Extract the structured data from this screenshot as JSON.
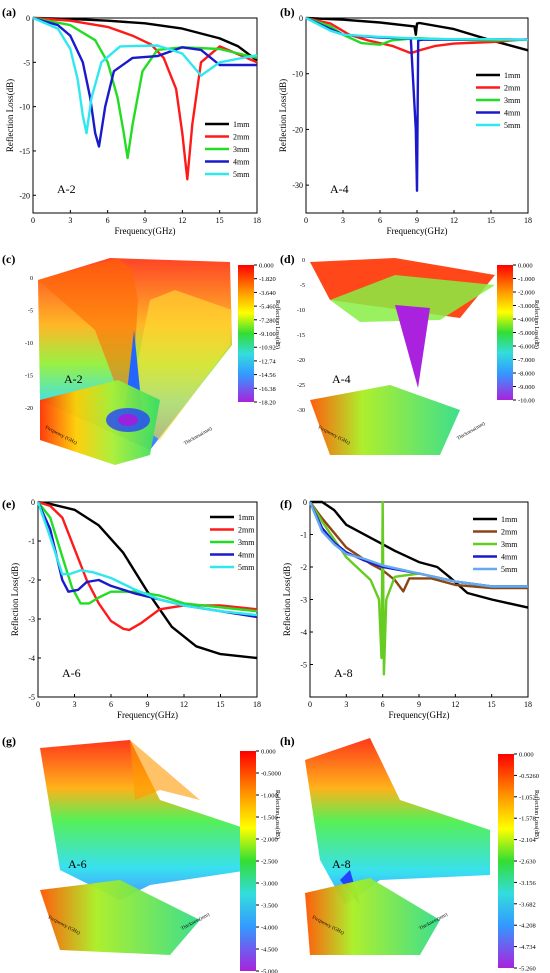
{
  "colors": {
    "1mm": "#000000",
    "2mm": "#ff1a1a",
    "3mm": "#22dd22",
    "4mm": "#1a1acc",
    "5mm": "#2ee8ee",
    "2mm_b": "#8b4513",
    "3mm_b": "#66cc22",
    "4mm_b": "#1a1acc",
    "5mm_b": "#66aaee"
  },
  "panels": {
    "a": {
      "label": "(a)",
      "sample": "A-2"
    },
    "b": {
      "label": "(b)",
      "sample": "A-4"
    },
    "c": {
      "label": "(c)",
      "sample": "A-2"
    },
    "d": {
      "label": "(d)",
      "sample": "A-4"
    },
    "e": {
      "label": "(e)",
      "sample": "A-6"
    },
    "f": {
      "label": "(f)",
      "sample": "A-8"
    },
    "g": {
      "label": "(g)",
      "sample": "A-6"
    },
    "h": {
      "label": "(h)",
      "sample": "A-8"
    }
  },
  "surface_axis_labels": {
    "z": "Reflection Loss(dB)",
    "freq": "Frequency (GHz)",
    "thick": "Thickness(mm)"
  },
  "chart_data": [
    {
      "panel": "a",
      "type": "line",
      "xlabel": "Frequency(GHz)",
      "ylabel": "Reflection Loss(dB)",
      "xlim": [
        0,
        18
      ],
      "ylim": [
        -22,
        0
      ],
      "xticks": [
        0,
        3,
        6,
        9,
        12,
        15,
        18
      ],
      "yticks": [
        0,
        -5,
        -10,
        -15,
        -20
      ],
      "legend": "center-right",
      "series": [
        {
          "name": "1mm",
          "x": [
            0,
            3,
            6,
            9,
            12,
            15,
            16.5,
            18
          ],
          "y": [
            0,
            -0.1,
            -0.3,
            -0.6,
            -1.2,
            -2.3,
            -3.2,
            -4.8
          ]
        },
        {
          "name": "2mm",
          "x": [
            0,
            3,
            6,
            8,
            9.5,
            10.5,
            11.5,
            12,
            12.4,
            12.8,
            13.5,
            15,
            18
          ],
          "y": [
            0,
            -0.3,
            -1,
            -2,
            -3,
            -4.5,
            -8,
            -13,
            -18.2,
            -12,
            -5,
            -3.2,
            -5
          ]
        },
        {
          "name": "3mm",
          "x": [
            0,
            3,
            5,
            6,
            6.8,
            7.3,
            7.6,
            8,
            8.8,
            10,
            12,
            15,
            18
          ],
          "y": [
            0,
            -0.8,
            -2.5,
            -5,
            -9,
            -13,
            -15.8,
            -12,
            -6,
            -3.6,
            -3.3,
            -3.5,
            -4.5
          ]
        },
        {
          "name": "4mm",
          "x": [
            0,
            2,
            3,
            4,
            4.6,
            5,
            5.3,
            5.8,
            6.5,
            8,
            10,
            12,
            13.5,
            15,
            18
          ],
          "y": [
            0,
            -0.8,
            -2,
            -5,
            -9,
            -13,
            -14.5,
            -10,
            -6,
            -4.5,
            -4.3,
            -3.3,
            -3.6,
            -5.3,
            -5.3
          ]
        },
        {
          "name": "5mm",
          "x": [
            0,
            2,
            3,
            3.6,
            4,
            4.3,
            4.7,
            5.5,
            7,
            10,
            12,
            13.5,
            15,
            18
          ],
          "y": [
            0,
            -1.2,
            -3.5,
            -7,
            -11,
            -13,
            -9,
            -5,
            -3.2,
            -3.1,
            -4,
            -6.5,
            -5,
            -4.2
          ]
        }
      ]
    },
    {
      "panel": "b",
      "type": "line",
      "xlabel": "Frequency(GHz)",
      "ylabel": "Reflection Loss(dB)",
      "xlim": [
        0,
        18
      ],
      "ylim": [
        -35,
        0
      ],
      "xticks": [
        0,
        3,
        6,
        9,
        12,
        15,
        18
      ],
      "yticks": [
        0,
        -10,
        -20,
        -30
      ],
      "legend": "center-right",
      "series": [
        {
          "name": "1mm",
          "x": [
            0,
            3,
            6,
            8.8,
            8.9,
            9.0,
            9.2,
            12,
            15,
            18
          ],
          "y": [
            0,
            -0.3,
            -0.8,
            -1.5,
            -3,
            -1.0,
            -0.9,
            -2,
            -4,
            -5.8
          ]
        },
        {
          "name": "2mm",
          "x": [
            0,
            2,
            3.5,
            5,
            7,
            8.5,
            9.2,
            10.5,
            12,
            15,
            18
          ],
          "y": [
            0,
            -1,
            -3,
            -4,
            -5,
            -6.3,
            -5.8,
            -5,
            -4.6,
            -4.3,
            -3.8
          ]
        },
        {
          "name": "3mm",
          "x": [
            0,
            2,
            3,
            4.5,
            6,
            7,
            8,
            9,
            12,
            15,
            18
          ],
          "y": [
            0,
            -1.5,
            -3,
            -4.5,
            -4.8,
            -4,
            -3.8,
            -3.6,
            -3.9,
            -4,
            -3.9
          ]
        },
        {
          "name": "4mm",
          "x": [
            0,
            2,
            3,
            6,
            8.5,
            8.9,
            9.0,
            9.1,
            9.5,
            12,
            15,
            18
          ],
          "y": [
            0,
            -2,
            -3,
            -3.5,
            -3.7,
            -20,
            -31,
            -4,
            -3.9,
            -3.9,
            -3.8,
            -3.9
          ]
        },
        {
          "name": "5mm",
          "x": [
            0,
            2,
            3,
            6,
            9,
            12,
            15,
            18
          ],
          "y": [
            0,
            -2.3,
            -3,
            -3.4,
            -3.7,
            -3.8,
            -3.8,
            -3.9
          ]
        }
      ]
    },
    {
      "panel": "c",
      "type": "heatmap",
      "colorbar_ticks": [
        "0.000",
        "-1.820",
        "-3.640",
        "-5.460",
        "-7.280",
        "-9.100",
        "-10.92",
        "-12.74",
        "-14.56",
        "-16.38",
        "-18.20"
      ],
      "zticks": [
        "0",
        "-5",
        "-10",
        "-15",
        "-20"
      ],
      "zlim": [
        -18.2,
        0
      ]
    },
    {
      "panel": "d",
      "type": "heatmap",
      "colorbar_ticks": [
        "0.000",
        "-1.000",
        "-2.000",
        "-3.000",
        "-4.000",
        "-5.000",
        "-6.000",
        "-7.000",
        "-8.000",
        "-9.000",
        "-10.00"
      ],
      "zticks": [
        "0",
        "-5",
        "-10",
        "-15",
        "-20",
        "-25",
        "-30"
      ],
      "zlim": [
        -10,
        0
      ]
    },
    {
      "panel": "e",
      "type": "line",
      "xlabel": "Frequency(GHz)",
      "ylabel": "Reflection Loss(dB)",
      "xlim": [
        0,
        18
      ],
      "ylim": [
        -5,
        0
      ],
      "xticks": [
        0,
        3,
        6,
        9,
        12,
        15,
        18
      ],
      "yticks": [
        0,
        -1,
        -2,
        -3,
        -4,
        -5
      ],
      "legend": "top-right",
      "series": [
        {
          "name": "1mm",
          "x": [
            0,
            1,
            3,
            5,
            7,
            9,
            11,
            13,
            15,
            18
          ],
          "y": [
            0,
            -0.05,
            -0.2,
            -0.6,
            -1.3,
            -2.3,
            -3.2,
            -3.7,
            -3.9,
            -4.0
          ]
        },
        {
          "name": "2mm",
          "x": [
            0,
            1,
            2,
            3,
            4,
            5,
            6,
            7,
            7.5,
            8.5,
            10,
            12,
            15,
            18
          ],
          "y": [
            0,
            -0.1,
            -0.4,
            -1.2,
            -2.0,
            -2.6,
            -3.05,
            -3.25,
            -3.28,
            -3.1,
            -2.75,
            -2.65,
            -2.65,
            -2.75
          ]
        },
        {
          "name": "3mm",
          "x": [
            0,
            1,
            2,
            2.8,
            3.5,
            4.2,
            5,
            6,
            8,
            10,
            12,
            15,
            18
          ],
          "y": [
            0,
            -0.4,
            -1.4,
            -2.2,
            -2.6,
            -2.6,
            -2.45,
            -2.3,
            -2.3,
            -2.4,
            -2.6,
            -2.7,
            -2.8
          ]
        },
        {
          "name": "4mm",
          "x": [
            0,
            1,
            2,
            2.5,
            3.3,
            4,
            5,
            6,
            8,
            10,
            12,
            15,
            18
          ],
          "y": [
            0,
            -0.7,
            -2.0,
            -2.3,
            -2.25,
            -2.05,
            -2.0,
            -2.15,
            -2.35,
            -2.5,
            -2.65,
            -2.8,
            -2.95
          ]
        },
        {
          "name": "5mm",
          "x": [
            0,
            1,
            2,
            2.6,
            3.5,
            4.5,
            6,
            8,
            10,
            12,
            15,
            18
          ],
          "y": [
            0,
            -0.9,
            -1.85,
            -1.85,
            -1.75,
            -1.8,
            -1.95,
            -2.25,
            -2.5,
            -2.65,
            -2.8,
            -2.9
          ]
        }
      ]
    },
    {
      "panel": "f",
      "type": "line",
      "xlabel": "Frequency(GHz)",
      "ylabel": "Reflection Loss(dB)",
      "xlim": [
        0,
        18
      ],
      "ylim": [
        -6,
        0
      ],
      "xticks": [
        0,
        3,
        6,
        9,
        12,
        15,
        18
      ],
      "yticks": [
        0,
        -1,
        -2,
        -3,
        -4,
        -5
      ],
      "legend": "top-right",
      "series": [
        {
          "name": "1mm",
          "x": [
            0,
            1,
            2,
            3,
            5,
            7,
            9,
            10.5,
            11.5,
            13,
            15,
            18
          ],
          "y": [
            0,
            0,
            -0.25,
            -0.7,
            -1.1,
            -1.5,
            -1.85,
            -2.0,
            -2.3,
            -2.8,
            -3.0,
            -3.25
          ]
        },
        {
          "name": "2mm",
          "x": [
            0,
            1,
            3,
            5,
            6,
            7,
            7.7,
            8.2,
            10,
            12,
            15,
            18
          ],
          "y": [
            0,
            -0.5,
            -1.4,
            -1.9,
            -2.1,
            -2.4,
            -2.75,
            -2.35,
            -2.35,
            -2.55,
            -2.65,
            -2.65
          ]
        },
        {
          "name": "3mm",
          "x": [
            0,
            1,
            3,
            5,
            5.7,
            5.9,
            6.0,
            6.1,
            6.3,
            7,
            9,
            12,
            15,
            18
          ],
          "y": [
            0,
            -0.6,
            -1.7,
            -2.4,
            -3.0,
            -4.8,
            0,
            -5.3,
            -3.0,
            -2.3,
            -2.2,
            -2.45,
            -2.6,
            -2.6
          ]
        },
        {
          "name": "4mm",
          "x": [
            0,
            1,
            2,
            3,
            4.5,
            6,
            9,
            12,
            15,
            18
          ],
          "y": [
            0,
            -0.8,
            -1.25,
            -1.55,
            -1.8,
            -2.0,
            -2.2,
            -2.45,
            -2.6,
            -2.6
          ]
        },
        {
          "name": "5mm",
          "x": [
            0,
            1,
            2,
            3,
            4.5,
            6,
            9,
            12,
            15,
            18
          ],
          "y": [
            0,
            -0.9,
            -1.3,
            -1.6,
            -1.75,
            -1.95,
            -2.2,
            -2.45,
            -2.6,
            -2.6
          ]
        }
      ]
    },
    {
      "panel": "g",
      "type": "heatmap",
      "colorbar_ticks": [
        "0.000",
        "-0.5000",
        "-1.000",
        "-1.500",
        "-2.000",
        "-2.500",
        "-3.000",
        "-3.500",
        "-4.000",
        "-4.500",
        "-5.000"
      ],
      "zlim": [
        -5,
        0
      ]
    },
    {
      "panel": "h",
      "type": "heatmap",
      "colorbar_ticks": [
        "0.000",
        "-0.5260",
        "-1.052",
        "-1.578",
        "-2.104",
        "-2.630",
        "-3.156",
        "-3.682",
        "-4.208",
        "-4.734",
        "-5.260"
      ],
      "zlim": [
        -5.26,
        0
      ]
    }
  ]
}
